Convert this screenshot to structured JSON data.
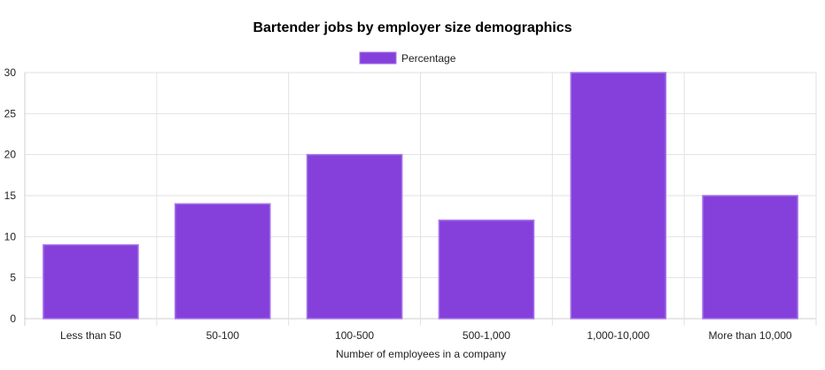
{
  "chart_data": {
    "type": "bar",
    "title": "Bartender jobs by employer size demographics",
    "xlabel": "Number of employees in a company",
    "ylabel": "",
    "categories": [
      "Less than 50",
      "50-100",
      "100-500",
      "500-1,000",
      "1,000-10,000",
      "More than 10,000"
    ],
    "series": [
      {
        "name": "Percentage",
        "values": [
          9,
          14,
          20,
          12,
          30,
          15
        ]
      }
    ],
    "ylim": [
      0,
      30
    ],
    "yticks": [
      0,
      5,
      10,
      15,
      20,
      25,
      30
    ],
    "grid": true,
    "legend_position": "top-center",
    "colors": {
      "bar_fill": "#8540DC",
      "bar_border": "#A778E8"
    }
  }
}
